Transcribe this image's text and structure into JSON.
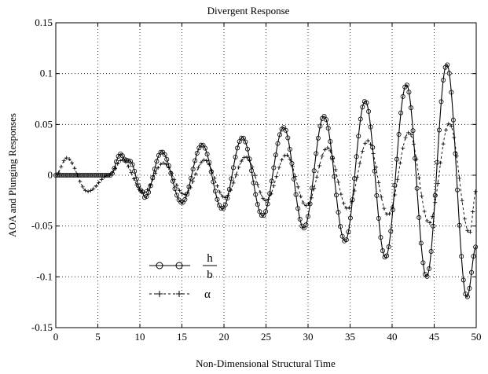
{
  "chart_data": {
    "type": "line",
    "title": "Divergent Response",
    "xlabel": "Non-Dimensional Structural Time",
    "ylabel": "AOA and Plunging Responses",
    "xlim": [
      0,
      50
    ],
    "ylim": [
      -0.15,
      0.15
    ],
    "xticks": [
      0,
      5,
      10,
      15,
      20,
      25,
      30,
      35,
      40,
      45,
      50
    ],
    "xtick_labels": [
      "0",
      "5",
      "10",
      "15",
      "20",
      "25",
      "30",
      "35",
      "40",
      "45",
      "50"
    ],
    "yticks": [
      -0.15,
      -0.1,
      -0.05,
      0,
      0.05,
      0.1,
      0.15
    ],
    "ytick_labels": [
      "-0.15",
      "-0.1",
      "-0.05",
      "0",
      "0.05",
      "0.1",
      "0.15"
    ],
    "grid": true,
    "legend_position": "lower-left",
    "series": [
      {
        "name": "h/b",
        "name_numerator": "h",
        "name_denominator": "b",
        "line_style": "solid",
        "marker": "circle",
        "color": "#000000",
        "points": [
          [
            0,
            0
          ],
          [
            6.5,
            0
          ],
          [
            7.7,
            0.021
          ],
          [
            8.3,
            0.015
          ],
          [
            8.8,
            0.014
          ],
          [
            10.2,
            -0.015
          ],
          [
            10.6,
            -0.022
          ],
          [
            12.6,
            0.023
          ],
          [
            15.0,
            -0.027
          ],
          [
            17.4,
            0.03
          ],
          [
            19.8,
            -0.033
          ],
          [
            22.2,
            0.037
          ],
          [
            24.6,
            -0.04
          ],
          [
            27.1,
            0.047
          ],
          [
            29.5,
            -0.052
          ],
          [
            31.9,
            0.058
          ],
          [
            34.4,
            -0.065
          ],
          [
            36.8,
            0.073
          ],
          [
            39.2,
            -0.081
          ],
          [
            41.7,
            0.089
          ],
          [
            44.1,
            -0.1
          ],
          [
            46.5,
            0.109
          ],
          [
            48.9,
            -0.12
          ],
          [
            50.0,
            -0.07
          ]
        ]
      },
      {
        "name": "α",
        "line_style": "dashed",
        "marker": "plus",
        "color": "#000000",
        "points": [
          [
            0,
            0
          ],
          [
            1.3,
            0.017
          ],
          [
            3.8,
            -0.016
          ],
          [
            6.3,
            0.0
          ],
          [
            7.9,
            0.015
          ],
          [
            10.4,
            -0.017
          ],
          [
            12.8,
            0.012
          ],
          [
            15.3,
            -0.019
          ],
          [
            17.7,
            0.015
          ],
          [
            20.1,
            -0.022
          ],
          [
            22.6,
            0.018
          ],
          [
            25.0,
            -0.025
          ],
          [
            27.4,
            0.02
          ],
          [
            29.8,
            -0.03
          ],
          [
            32.3,
            0.027
          ],
          [
            34.7,
            -0.033
          ],
          [
            37.1,
            0.034
          ],
          [
            39.5,
            -0.039
          ],
          [
            42.0,
            0.042
          ],
          [
            44.4,
            -0.047
          ],
          [
            46.8,
            0.051
          ],
          [
            49.2,
            -0.057
          ],
          [
            50.0,
            -0.015
          ]
        ]
      }
    ]
  }
}
